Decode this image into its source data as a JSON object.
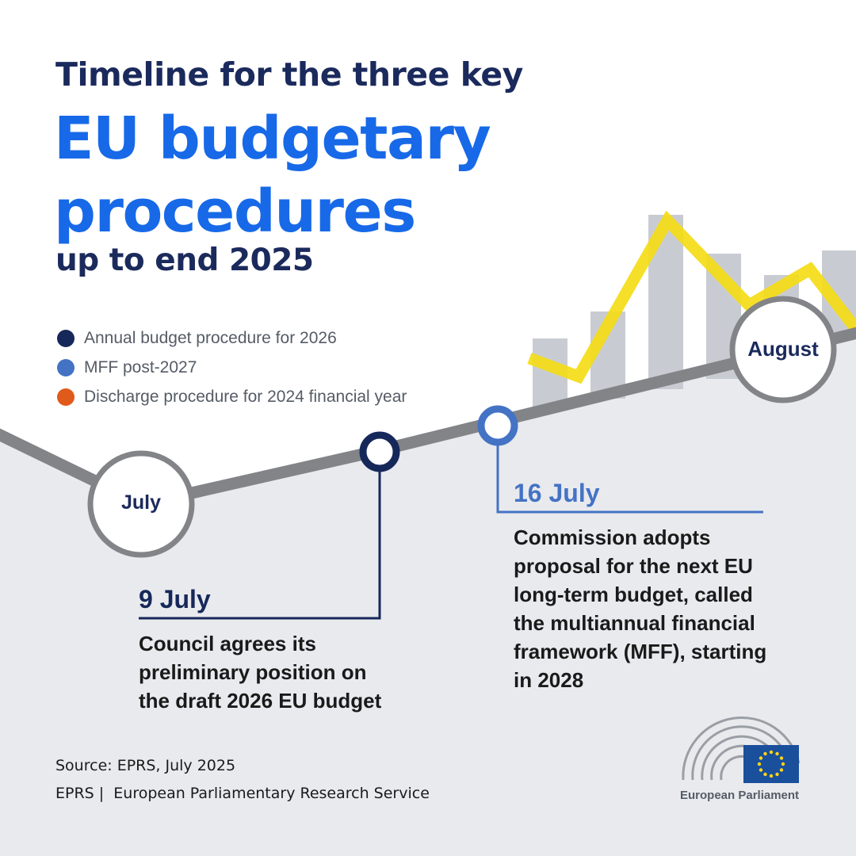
{
  "title": {
    "line1": "Timeline for the three key",
    "line2": "EU budgetary",
    "line3": "procedures",
    "line4": "up to end 2025"
  },
  "legend": [
    {
      "label": "Annual budget procedure for 2026",
      "color": "#16285a"
    },
    {
      "label": "MFF post-2027",
      "color": "#4473c5"
    },
    {
      "label": "Discharge procedure for 2024 financial year",
      "color": "#e05a1b"
    }
  ],
  "months": {
    "july": "July",
    "august": "August"
  },
  "events": [
    {
      "date": "9 July",
      "description": "Council agrees its preliminary position on the draft 2026 EU budget",
      "color": "#16285a"
    },
    {
      "date": "16 July",
      "description": "Commission adopts proposal for the next EU long-term budget, called the multiannual financial framework (MFF), starting in 2028",
      "color": "#4473c5"
    }
  ],
  "source": "Source: EPRS, July 2025",
  "footer": {
    "prefix": "EPRS |",
    "name": "European Parliamentary Research Service"
  },
  "logo": {
    "name": "European Parliament",
    "flag_color": "#1a4f9c",
    "star_color": "#ffd617"
  },
  "colors": {
    "title_dark": "#1b2a5c",
    "title_accent": "#1769e8",
    "timeline_gray": "#828488",
    "background_lower": "#e9eaee",
    "bars": "#c8ccd2",
    "accent_line": "#f4dc16"
  }
}
